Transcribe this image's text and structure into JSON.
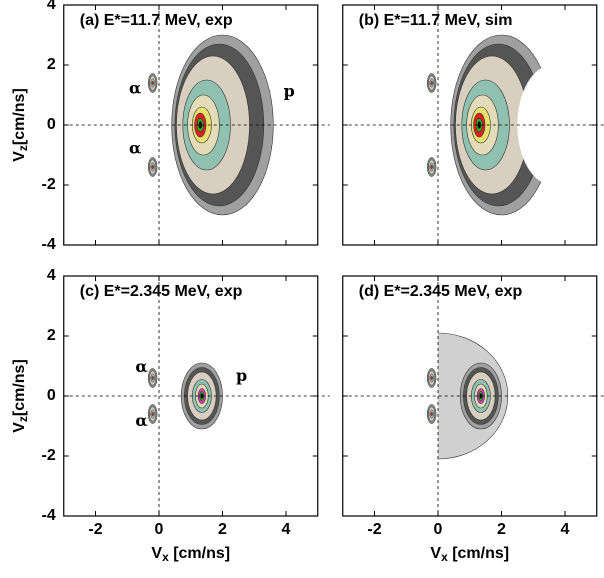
{
  "chart_data": [
    {
      "type": "contour",
      "title": "(a) E*=11.7 MeV, exp",
      "xlim": [
        -3,
        5
      ],
      "ylim": [
        -4,
        4
      ],
      "xticks": [
        -2,
        0,
        2,
        4
      ],
      "yticks": [
        -4,
        -2,
        0,
        2,
        4
      ],
      "xtick_labels": false,
      "ytick_labels": true,
      "ylabel": [
        "V",
        "z",
        "[cm/ns]"
      ],
      "annotations": [
        "α",
        "α",
        "p"
      ]
    },
    {
      "type": "contour",
      "title": "(b) E*=11.7 MeV, sim",
      "xlim": [
        -3,
        5
      ],
      "ylim": [
        -4,
        4
      ],
      "xticks": [
        -2,
        0,
        2,
        4
      ],
      "yticks": [
        -4,
        -2,
        0,
        2,
        4
      ],
      "xtick_labels": false,
      "ytick_labels": false
    },
    {
      "type": "contour",
      "title": "(c) E*=2.345 MeV, exp",
      "xlim": [
        -3,
        5
      ],
      "ylim": [
        -4,
        4
      ],
      "xticks": [
        -2,
        0,
        2,
        4
      ],
      "yticks": [
        -4,
        -2,
        0,
        2,
        4
      ],
      "xtick_labels": true,
      "ytick_labels": true,
      "ylabel": [
        "V",
        "z",
        "[cm/ns]"
      ],
      "xlabel": [
        "V",
        "x",
        " [cm/ns]"
      ],
      "annotations": [
        "α",
        "α",
        "p"
      ]
    },
    {
      "type": "contour",
      "title": "(d) E*=2.345 MeV, exp",
      "xlim": [
        -3,
        5
      ],
      "ylim": [
        -4,
        4
      ],
      "xticks": [
        -2,
        0,
        2,
        4
      ],
      "yticks": [
        -4,
        -2,
        0,
        2,
        4
      ],
      "xtick_labels": true,
      "ytick_labels": false,
      "xlabel": [
        "V",
        "x",
        " [cm/ns]"
      ]
    }
  ]
}
